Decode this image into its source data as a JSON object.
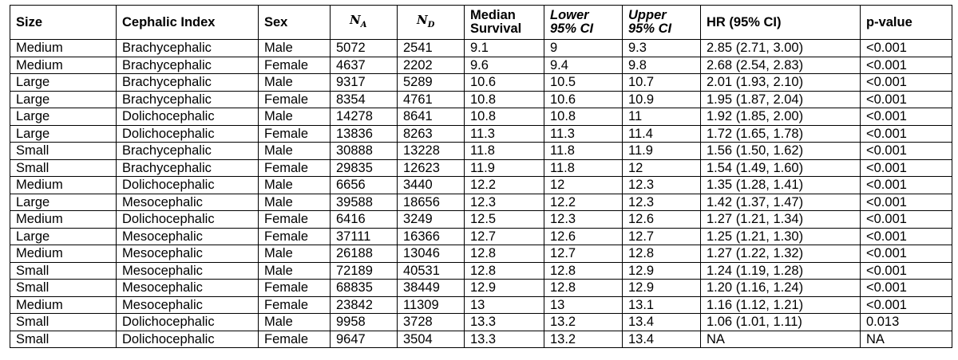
{
  "table": {
    "headers": {
      "size": "Size",
      "cephalic_index": "Cephalic Index",
      "sex": "Sex",
      "n_a": {
        "base": "N",
        "sub": "A"
      },
      "n_d": {
        "base": "N",
        "sub": "D"
      },
      "median_survival": [
        "Median",
        "Survival"
      ],
      "lower_ci": [
        "Lower",
        "95% CI"
      ],
      "upper_ci": [
        "Upper",
        "95% CI"
      ],
      "hr": "HR (95% CI)",
      "p_value": "p-value"
    },
    "rows": [
      [
        "Medium",
        "Brachycephalic",
        "Male",
        "5072",
        "2541",
        "9.1",
        "9",
        "9.3",
        "2.85 (2.71, 3.00)",
        "<0.001"
      ],
      [
        "Medium",
        "Brachycephalic",
        "Female",
        "4637",
        "2202",
        "9.6",
        "9.4",
        "9.8",
        "2.68 (2.54, 2.83)",
        "<0.001"
      ],
      [
        "Large",
        "Brachycephalic",
        "Male",
        "9317",
        "5289",
        "10.6",
        "10.5",
        "10.7",
        "2.01 (1.93, 2.10)",
        "<0.001"
      ],
      [
        "Large",
        "Brachycephalic",
        "Female",
        "8354",
        "4761",
        "10.8",
        "10.6",
        "10.9",
        "1.95 (1.87, 2.04)",
        "<0.001"
      ],
      [
        "Large",
        "Dolichocephalic",
        "Male",
        "14278",
        "8641",
        "10.8",
        "10.8",
        "11",
        "1.92 (1.85, 2.00)",
        "<0.001"
      ],
      [
        "Large",
        "Dolichocephalic",
        "Female",
        "13836",
        "8263",
        "11.3",
        "11.3",
        "11.4",
        "1.72 (1.65, 1.78)",
        "<0.001"
      ],
      [
        "Small",
        "Brachycephalic",
        "Male",
        "30888",
        "13228",
        "11.8",
        "11.8",
        "11.9",
        "1.56 (1.50, 1.62)",
        "<0.001"
      ],
      [
        "Small",
        "Brachycephalic",
        "Female",
        "29835",
        "12623",
        "11.9",
        "11.8",
        "12",
        "1.54 (1.49, 1.60)",
        "<0.001"
      ],
      [
        "Medium",
        "Dolichocephalic",
        "Male",
        "6656",
        "3440",
        "12.2",
        "12",
        "12.3",
        "1.35 (1.28, 1.41)",
        "<0.001"
      ],
      [
        "Large",
        "Mesocephalic",
        "Male",
        "39588",
        "18656",
        "12.3",
        "12.2",
        "12.3",
        "1.42 (1.37, 1.47)",
        "<0.001"
      ],
      [
        "Medium",
        "Dolichocephalic",
        "Female",
        "6416",
        "3249",
        "12.5",
        "12.3",
        "12.6",
        "1.27 (1.21, 1.34)",
        "<0.001"
      ],
      [
        "Large",
        "Mesocephalic",
        "Female",
        "37111",
        "16366",
        "12.7",
        "12.6",
        "12.7",
        "1.25 (1.21, 1.30)",
        "<0.001"
      ],
      [
        "Medium",
        "Mesocephalic",
        "Male",
        "26188",
        "13046",
        "12.8",
        "12.7",
        "12.8",
        "1.27 (1.22, 1.32)",
        "<0.001"
      ],
      [
        "Small",
        "Mesocephalic",
        "Male",
        "72189",
        "40531",
        "12.8",
        "12.8",
        "12.9",
        "1.24 (1.19, 1.28)",
        "<0.001"
      ],
      [
        "Small",
        "Mesocephalic",
        "Female",
        "68835",
        "38449",
        "12.9",
        "12.8",
        "12.9",
        "1.20 (1.16, 1.24)",
        "<0.001"
      ],
      [
        "Medium",
        "Mesocephalic",
        "Female",
        "23842",
        "11309",
        "13",
        "13",
        "13.1",
        "1.16 (1.12, 1.21)",
        "<0.001"
      ],
      [
        "Small",
        "Dolichocephalic",
        "Male",
        "9958",
        "3728",
        "13.3",
        "13.2",
        "13.4",
        "1.06 (1.01, 1.11)",
        "0.013"
      ],
      [
        "Small",
        "Dolichocephalic",
        "Female",
        "9647",
        "3504",
        "13.3",
        "13.2",
        "13.4",
        "NA",
        "NA"
      ]
    ]
  }
}
